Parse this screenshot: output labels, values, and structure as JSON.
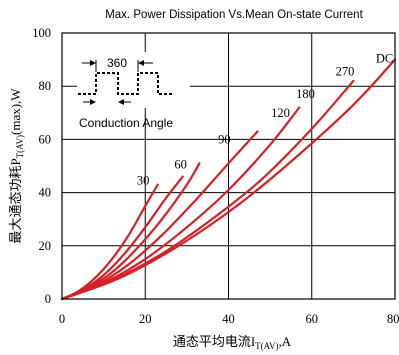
{
  "chart_data": {
    "type": "line",
    "title": "Max. Power Dissipation Vs.Mean On-state Current",
    "xlabel_main": "通态平均电流I",
    "xlabel_sub": "T(AV)",
    "xlabel_tail": ",A",
    "ylabel_main": "最大通态功耗P",
    "ylabel_sub": "T(AV)",
    "ylabel_tail": "(max),W",
    "xlim": [
      0,
      80
    ],
    "ylim": [
      0,
      100
    ],
    "x_ticks": [
      "0",
      "20",
      "40",
      "60",
      "80"
    ],
    "y_ticks": [
      "0",
      "20",
      "40",
      "60",
      "80",
      "100"
    ],
    "grid": true,
    "inset": {
      "angle_label": "360",
      "caption": "Conduction Angle"
    },
    "series": [
      {
        "name": "30",
        "points": [
          [
            0,
            0
          ],
          [
            4,
            3
          ],
          [
            8,
            8
          ],
          [
            12,
            15
          ],
          [
            16,
            24
          ],
          [
            20,
            35
          ],
          [
            23,
            43
          ]
        ]
      },
      {
        "name": "60",
        "points": [
          [
            0,
            0
          ],
          [
            5,
            3.5
          ],
          [
            10,
            9
          ],
          [
            15,
            17
          ],
          [
            20,
            27
          ],
          [
            25,
            38
          ],
          [
            29,
            46
          ]
        ]
      },
      {
        "name": "90",
        "points": [
          [
            0,
            0
          ],
          [
            6,
            4
          ],
          [
            12,
            10
          ],
          [
            18,
            19
          ],
          [
            24,
            30
          ],
          [
            30,
            43
          ],
          [
            33,
            51
          ]
        ]
      },
      {
        "name": "120",
        "points": [
          [
            0,
            0
          ],
          [
            8,
            5
          ],
          [
            16,
            13
          ],
          [
            24,
            24
          ],
          [
            32,
            37
          ],
          [
            40,
            51
          ],
          [
            47,
            63
          ]
        ]
      },
      {
        "name": "180",
        "points": [
          [
            0,
            0
          ],
          [
            10,
            6
          ],
          [
            20,
            15
          ],
          [
            30,
            27
          ],
          [
            40,
            41
          ],
          [
            50,
            58
          ],
          [
            57,
            72
          ]
        ]
      },
      {
        "name": "270",
        "points": [
          [
            0,
            0
          ],
          [
            12,
            7
          ],
          [
            24,
            17
          ],
          [
            36,
            30
          ],
          [
            48,
            45
          ],
          [
            60,
            64
          ],
          [
            70,
            82
          ]
        ]
      },
      {
        "name": "DC",
        "points": [
          [
            0,
            0
          ],
          [
            14,
            8
          ],
          [
            28,
            20
          ],
          [
            42,
            35
          ],
          [
            56,
            53
          ],
          [
            70,
            73
          ],
          [
            80,
            90
          ]
        ]
      }
    ],
    "label_positions": [
      {
        "name": "30",
        "x": 19.5,
        "y": 43
      },
      {
        "name": "60",
        "x": 28.5,
        "y": 49
      },
      {
        "name": "90",
        "x": 39,
        "y": 58.5
      },
      {
        "name": "120",
        "x": 52.5,
        "y": 68.5
      },
      {
        "name": "180",
        "x": 58.5,
        "y": 75.5
      },
      {
        "name": "270",
        "x": 68,
        "y": 84
      },
      {
        "name": "DC",
        "x": 77.5,
        "y": 89
      }
    ]
  }
}
